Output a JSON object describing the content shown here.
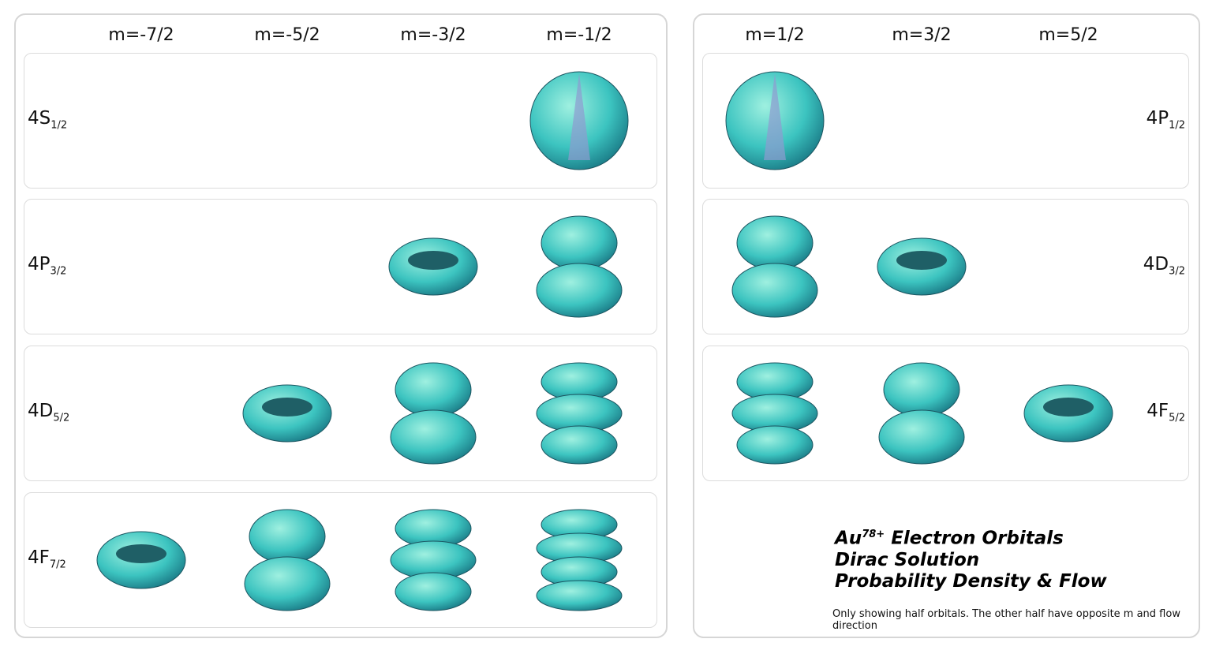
{
  "left": {
    "columns": [
      "m=-7/2",
      "m=-5/2",
      "m=-3/2",
      "m=-1/2"
    ],
    "rows": [
      {
        "main": "4S",
        "sub": "1/2"
      },
      {
        "main": "4P",
        "sub": "3/2"
      },
      {
        "main": "4D",
        "sub": "5/2"
      },
      {
        "main": "4F",
        "sub": "7/2"
      }
    ]
  },
  "right": {
    "columns": [
      "m=1/2",
      "m=3/2",
      "m=5/2"
    ],
    "rows": [
      {
        "main": "4P",
        "sub": "1/2"
      },
      {
        "main": "4D",
        "sub": "3/2"
      },
      {
        "main": "4F",
        "sub": "5/2"
      }
    ]
  },
  "title": {
    "element": "Au",
    "charge": "78+",
    "line1": "Electron Orbitals",
    "line2": "Dirac Solution",
    "line3": "Probability Density & Flow"
  },
  "note": "Only showing half orbitals. The other half have opposite m and flow direction"
}
